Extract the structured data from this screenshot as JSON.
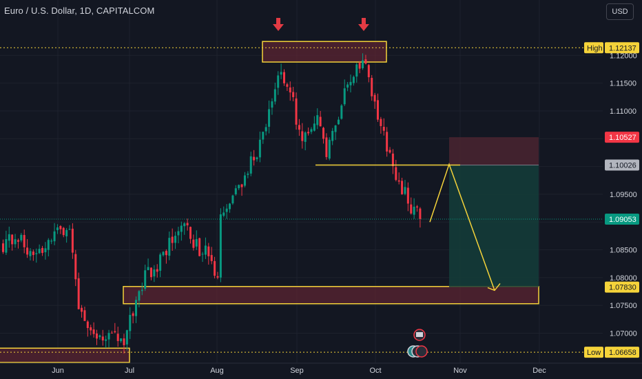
{
  "header": {
    "title": "Euro / U.S. Dollar, 1D, CAPITALCOM",
    "currency_button": "USD"
  },
  "chart_data": {
    "type": "candlestick",
    "symbol": "EURUSD",
    "interval": "1D",
    "x_ticks": [
      "Jun",
      "Jul",
      "Aug",
      "Sep",
      "Oct",
      "Nov",
      "Dec"
    ],
    "y_ticks": [
      "1.12000",
      "1.11500",
      "1.11000",
      "1.10500",
      "1.10000",
      "1.09500",
      "1.09000",
      "1.08500",
      "1.08000",
      "1.07500",
      "1.07000"
    ],
    "ylim": [
      1.0651,
      1.1255
    ],
    "price_tags": [
      {
        "label": "High",
        "value": "1.12137",
        "color": "#f5d33a"
      },
      {
        "value": "1.10527",
        "color": "#f23645"
      },
      {
        "value": "1.10026",
        "color": "#b2b5be"
      },
      {
        "value": "1.09053",
        "color": "#089981"
      },
      {
        "value": "1.07830",
        "color": "#f5d33a"
      },
      {
        "label": "Low",
        "value": "1.06658",
        "color": "#f5d33a"
      }
    ],
    "candle_count": 139,
    "candles_seed": 20240611,
    "first_candle_value": 1.086,
    "last_close": 1.09053,
    "colors": {
      "up": "#089981",
      "down": "#f23645",
      "zone_border": "#f5d33a",
      "zone_fill": "#5b2432",
      "arrow": "#f5d33a",
      "marker": "#e33b44",
      "stop_zone": "#4a2530",
      "target_zone": "#143d3a",
      "grid": "#1e222d",
      "last_price_line": "#089981"
    },
    "annotations": {
      "double_top_zone": [
        1.1188,
        1.1225
      ],
      "support_zone": [
        1.0753,
        1.0784
      ],
      "low_zone_top": 1.0673,
      "neckline": 1.10026,
      "projection": [
        1.09,
        1.1004,
        1.0777
      ],
      "stop_loss": 1.10527,
      "entry": 1.10026,
      "target": 1.0783
    }
  }
}
